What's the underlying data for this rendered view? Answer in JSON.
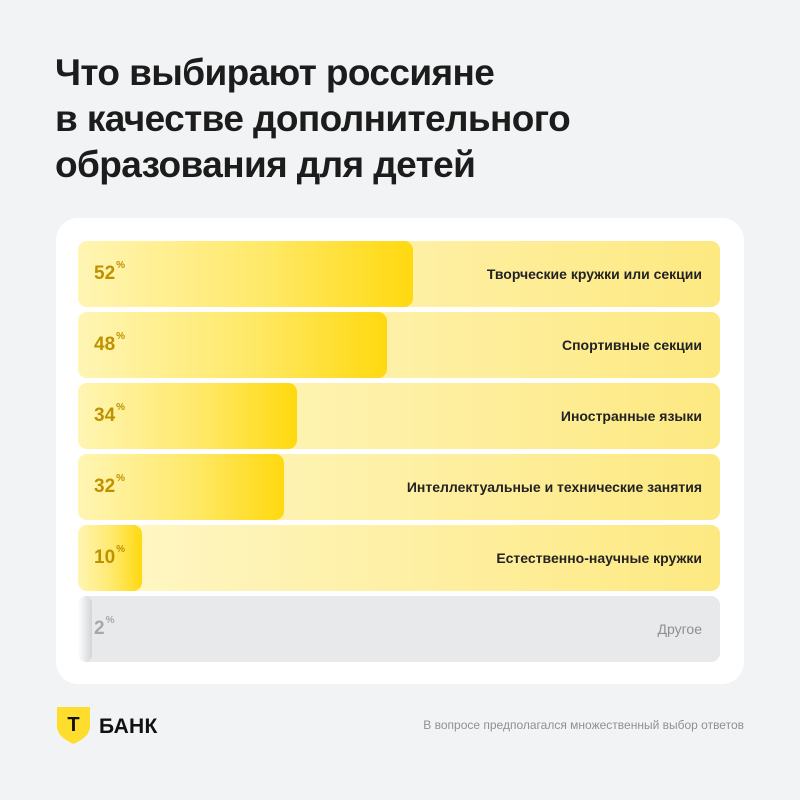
{
  "title_lines": [
    "Что выбирают россияне",
    "в качестве дополнительного",
    "образования для детей"
  ],
  "chart_data": {
    "type": "bar",
    "orientation": "horizontal",
    "title": "Что выбирают россияне в качестве дополнительного образования для детей",
    "categories": [
      "Творческие кружки или секции",
      "Спортивные секции",
      "Иностранные языки",
      "Интеллектуальные и технические занятия",
      "Естественно-научные кружки",
      "Другое"
    ],
    "values": [
      52,
      48,
      34,
      32,
      10,
      2
    ],
    "value_unit": "%",
    "xlim": [
      0,
      100
    ],
    "grid": false,
    "legend": "none"
  },
  "colors": {
    "accent": "#ffdd2d",
    "value_text": "#bf9000",
    "other_value_text": "#a6a8ab"
  },
  "brand": {
    "shield_letter": "Т",
    "name": "БАНК"
  },
  "footnote": "В вопросе предполагался множественный выбор ответов"
}
